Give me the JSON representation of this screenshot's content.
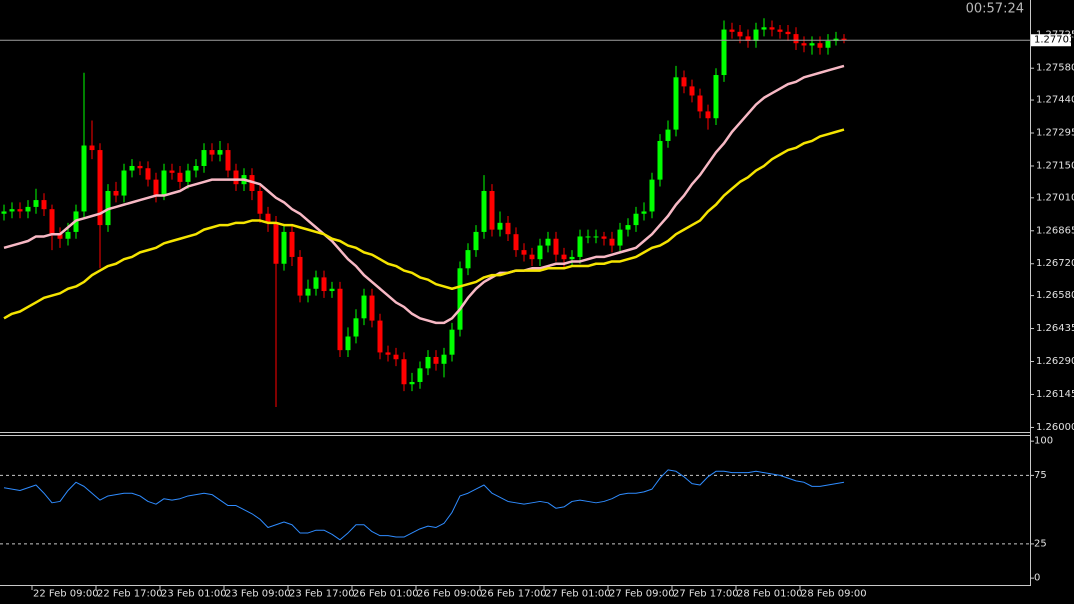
{
  "timer": "00:57:24",
  "chart_data": [
    {
      "type": "candlestick",
      "categories": [
        null,
        null,
        null,
        null,
        "22 Feb 09:00",
        null,
        null,
        null,
        null,
        null,
        null,
        null,
        "22 Feb 17:00",
        null,
        null,
        null,
        null,
        null,
        null,
        null,
        "23 Feb 01:00",
        null,
        null,
        null,
        null,
        null,
        null,
        null,
        "23 Feb 09:00",
        null,
        null,
        null,
        null,
        null,
        null,
        null,
        "23 Feb 17:00",
        null,
        null,
        null,
        null,
        null,
        null,
        null,
        "26 Feb 01:00",
        null,
        null,
        null,
        null,
        null,
        null,
        null,
        "26 Feb 09:00",
        null,
        null,
        null,
        null,
        null,
        null,
        null,
        "26 Feb 17:00",
        null,
        null,
        null,
        null,
        null,
        null,
        null,
        "27 Feb 01:00",
        null,
        null,
        null,
        null,
        null,
        null,
        null,
        "27 Feb 09:00",
        null,
        null,
        null,
        null,
        null,
        null,
        null,
        "27 Feb 17:00",
        null,
        null,
        null,
        null,
        null,
        null,
        null,
        "28 Feb 01:00",
        null,
        null,
        null,
        null,
        null,
        null,
        null,
        "28 Feb 09:00",
        null,
        null,
        null,
        null,
        null
      ],
      "open": [
        1.2694,
        1.2695,
        1.2696,
        1.2695,
        1.2697,
        1.27,
        1.2696,
        1.2685,
        1.2683,
        1.2686,
        1.2695,
        1.2724,
        1.2722,
        1.2689,
        1.2704,
        1.2702,
        1.2713,
        1.2715,
        1.2714,
        1.2709,
        1.2702,
        1.2713,
        1.2712,
        1.2708,
        1.2713,
        1.2715,
        1.2722,
        1.272,
        1.2722,
        1.2713,
        1.2707,
        1.2711,
        1.2704,
        1.2694,
        1.269,
        1.2672,
        1.2686,
        1.2675,
        1.2658,
        1.2661,
        1.2666,
        1.266,
        1.2661,
        1.2634,
        1.264,
        1.2648,
        1.2658,
        1.2647,
        1.2633,
        1.2632,
        1.263,
        1.2619,
        1.262,
        1.2626,
        1.2631,
        1.2628,
        1.2632,
        1.2643,
        1.267,
        1.2678,
        1.2686,
        1.2704,
        1.2687,
        1.269,
        1.2685,
        1.2678,
        1.2676,
        1.2674,
        1.268,
        1.2683,
        1.2676,
        1.2674,
        1.2675,
        1.2684,
        1.2684,
        1.2684,
        1.2683,
        1.268,
        1.2687,
        1.2689,
        1.2694,
        1.2695,
        1.2709,
        1.2726,
        1.2731,
        1.2754,
        1.275,
        1.2746,
        1.2739,
        1.2736,
        1.2755,
        1.2775,
        1.2774,
        1.2772,
        1.277,
        1.2775,
        1.2776,
        1.2775,
        1.2774,
        1.2773,
        1.2769,
        1.2768,
        1.2769,
        1.2767,
        1.277,
        1.2771
      ],
      "high": [
        1.2698,
        1.2699,
        1.2699,
        1.27,
        1.2705,
        1.2703,
        1.2698,
        1.2688,
        1.269,
        1.2698,
        1.2756,
        1.2735,
        1.2725,
        1.2707,
        1.2708,
        1.2716,
        1.2718,
        1.2717,
        1.2717,
        1.2712,
        1.2716,
        1.2716,
        1.2715,
        1.2716,
        1.2718,
        1.2725,
        1.2725,
        1.2726,
        1.2725,
        1.2716,
        1.2714,
        1.2714,
        1.2707,
        1.2697,
        1.2693,
        1.2689,
        1.2689,
        1.2678,
        1.2665,
        1.2669,
        1.2669,
        1.2664,
        1.2664,
        1.2644,
        1.2652,
        1.2661,
        1.2661,
        1.265,
        1.2636,
        1.2635,
        1.2633,
        1.2624,
        1.2629,
        1.2634,
        1.2634,
        1.2635,
        1.2646,
        1.2673,
        1.2681,
        1.2689,
        1.2711,
        1.2707,
        1.2695,
        1.2693,
        1.2688,
        1.2681,
        1.2679,
        1.2683,
        1.2686,
        1.2686,
        1.2679,
        1.2678,
        1.2687,
        1.2687,
        1.2687,
        1.2686,
        1.2686,
        1.269,
        1.2692,
        1.2697,
        1.2699,
        1.2712,
        1.2729,
        1.2735,
        1.2759,
        1.2757,
        1.2753,
        1.2749,
        1.2742,
        1.2758,
        1.2779,
        1.2778,
        1.2777,
        1.2775,
        1.2778,
        1.278,
        1.2779,
        1.2777,
        1.2777,
        1.2776,
        1.2772,
        1.2772,
        1.2772,
        1.2773,
        1.2774,
        1.2773
      ],
      "low": [
        1.2691,
        1.2692,
        1.2692,
        1.2692,
        1.2694,
        1.2693,
        1.2678,
        1.2679,
        1.268,
        1.2683,
        1.2692,
        1.2718,
        1.267,
        1.2686,
        1.2699,
        1.2699,
        1.271,
        1.2711,
        1.2706,
        1.2699,
        1.27,
        1.2709,
        1.2705,
        1.2705,
        1.271,
        1.2712,
        1.2717,
        1.2717,
        1.271,
        1.2704,
        1.2704,
        1.27,
        1.269,
        1.2686,
        1.2609,
        1.2669,
        1.2671,
        1.2655,
        1.2655,
        1.2658,
        1.2657,
        1.2657,
        1.2631,
        1.2631,
        1.2637,
        1.2645,
        1.2644,
        1.263,
        1.2629,
        1.2627,
        1.2616,
        1.2616,
        1.2617,
        1.2623,
        1.2625,
        1.2622,
        1.2629,
        1.264,
        1.2667,
        1.2675,
        1.2683,
        1.2684,
        1.2684,
        1.2682,
        1.2675,
        1.2673,
        1.2671,
        1.2671,
        1.2677,
        1.2673,
        1.267,
        1.2671,
        1.2672,
        1.2681,
        1.2681,
        1.268,
        1.2677,
        1.2677,
        1.2684,
        1.2686,
        1.2691,
        1.2692,
        1.2706,
        1.2723,
        1.2728,
        1.2747,
        1.2743,
        1.2736,
        1.2731,
        1.2733,
        1.2752,
        1.2771,
        1.2769,
        1.2767,
        1.2767,
        1.2772,
        1.2772,
        1.2771,
        1.277,
        1.2766,
        1.2765,
        1.2764,
        1.2764,
        1.2764,
        1.2768,
        1.2769
      ],
      "close": [
        1.2695,
        1.2696,
        1.2695,
        1.2697,
        1.27,
        1.2696,
        1.2685,
        1.2683,
        1.2686,
        1.2695,
        1.2724,
        1.2722,
        1.2689,
        1.2704,
        1.2702,
        1.2713,
        1.2715,
        1.2714,
        1.2709,
        1.2702,
        1.2713,
        1.2712,
        1.2708,
        1.2713,
        1.2715,
        1.2722,
        1.272,
        1.2722,
        1.2713,
        1.2707,
        1.2711,
        1.2704,
        1.2694,
        1.269,
        1.2672,
        1.2686,
        1.2675,
        1.2658,
        1.2661,
        1.2666,
        1.266,
        1.2661,
        1.2634,
        1.264,
        1.2648,
        1.2658,
        1.2647,
        1.2633,
        1.2632,
        1.263,
        1.2619,
        1.262,
        1.2626,
        1.2631,
        1.2628,
        1.2632,
        1.2643,
        1.267,
        1.2678,
        1.2686,
        1.2704,
        1.2687,
        1.269,
        1.2685,
        1.2678,
        1.2676,
        1.2674,
        1.268,
        1.2683,
        1.2676,
        1.2674,
        1.2675,
        1.2684,
        1.2684,
        1.2684,
        1.2683,
        1.268,
        1.2687,
        1.2689,
        1.2694,
        1.2695,
        1.2709,
        1.2726,
        1.2731,
        1.2754,
        1.275,
        1.2746,
        1.2739,
        1.2736,
        1.2755,
        1.2775,
        1.2774,
        1.2772,
        1.277,
        1.2775,
        1.2776,
        1.2775,
        1.2774,
        1.2773,
        1.2769,
        1.2768,
        1.2769,
        1.2767,
        1.277,
        1.2771,
        1.27703
      ],
      "up_color": "#00ff00",
      "down_color": "#ff0000",
      "series": [
        {
          "color": "#f7b8c4",
          "values": [
            1.2679,
            1.268,
            1.2681,
            1.2682,
            1.2684,
            1.2684,
            1.2685,
            1.2685,
            1.2688,
            1.2691,
            1.2692,
            1.2693,
            1.2694,
            1.2696,
            1.2697,
            1.2698,
            1.2699,
            1.27,
            1.2701,
            1.2702,
            1.2702,
            1.2703,
            1.2704,
            1.2706,
            1.2707,
            1.2708,
            1.2709,
            1.2709,
            1.2709,
            1.2709,
            1.2709,
            1.2708,
            1.2707,
            1.2704,
            1.2701,
            1.2699,
            1.2696,
            1.2694,
            1.2691,
            1.2688,
            1.2685,
            1.2682,
            1.2678,
            1.2674,
            1.2671,
            1.2667,
            1.2664,
            1.2661,
            1.2658,
            1.2655,
            1.2653,
            1.265,
            1.2648,
            1.2647,
            1.2646,
            1.2646,
            1.2648,
            1.2652,
            1.2657,
            1.2661,
            1.2664,
            1.2666,
            1.2668,
            1.2668,
            1.2669,
            1.2669,
            1.267,
            1.267,
            1.2671,
            1.2672,
            1.2672,
            1.2673,
            1.2673,
            1.2674,
            1.2675,
            1.2675,
            1.2676,
            1.2677,
            1.2678,
            1.2679,
            1.2682,
            1.2685,
            1.2689,
            1.2693,
            1.2698,
            1.2702,
            1.2707,
            1.2711,
            1.2716,
            1.2721,
            1.2725,
            1.273,
            1.2734,
            1.2738,
            1.2742,
            1.2745,
            1.2747,
            1.2749,
            1.2751,
            1.2752,
            1.2754,
            1.2755,
            1.2756,
            1.2757,
            1.2758,
            1.2759
          ]
        },
        {
          "color": "#f5e400",
          "values": [
            1.2648,
            1.265,
            1.2651,
            1.2653,
            1.2655,
            1.2657,
            1.2658,
            1.2659,
            1.2661,
            1.2662,
            1.2664,
            1.2667,
            1.2669,
            1.2671,
            1.2672,
            1.2674,
            1.2675,
            1.2677,
            1.2678,
            1.2679,
            1.2681,
            1.2682,
            1.2683,
            1.2684,
            1.2685,
            1.2687,
            1.2688,
            1.2689,
            1.2689,
            1.269,
            1.269,
            1.2691,
            1.2691,
            1.269,
            1.269,
            1.2689,
            1.2689,
            1.2688,
            1.2687,
            1.2686,
            1.2685,
            1.2683,
            1.2682,
            1.268,
            1.2679,
            1.2677,
            1.2676,
            1.2674,
            1.2672,
            1.2671,
            1.2669,
            1.2668,
            1.2666,
            1.2665,
            1.2663,
            1.2662,
            1.2661,
            1.2662,
            1.2663,
            1.2664,
            1.2666,
            1.2667,
            1.2667,
            1.2668,
            1.2669,
            1.2669,
            1.2669,
            1.2669,
            1.267,
            1.267,
            1.267,
            1.2671,
            1.2671,
            1.2671,
            1.2672,
            1.2672,
            1.2673,
            1.2673,
            1.2674,
            1.2675,
            1.2677,
            1.2679,
            1.268,
            1.2682,
            1.2685,
            1.2687,
            1.2689,
            1.2691,
            1.2695,
            1.2698,
            1.2702,
            1.2705,
            1.2708,
            1.271,
            1.2713,
            1.2715,
            1.2718,
            1.272,
            1.2722,
            1.2723,
            1.2725,
            1.2726,
            1.2728,
            1.2729,
            1.273,
            1.2731
          ]
        }
      ],
      "ylim": [
        1.2598,
        1.2788
      ],
      "yticks": [
        {
          "value": 1.27725,
          "label": "1.27725"
        },
        {
          "value": 1.2758,
          "label": "1.27580"
        },
        {
          "value": 1.2744,
          "label": "1.27440"
        },
        {
          "value": 1.27295,
          "label": "1.27295"
        },
        {
          "value": 1.2715,
          "label": "1.27150"
        },
        {
          "value": 1.2701,
          "label": "1.27010"
        },
        {
          "value": 1.26865,
          "label": "1.26865"
        },
        {
          "value": 1.2672,
          "label": "1.26720"
        },
        {
          "value": 1.2658,
          "label": "1.26580"
        },
        {
          "value": 1.26435,
          "label": "1.26435"
        },
        {
          "value": 1.2629,
          "label": "1.26290"
        },
        {
          "value": 1.26145,
          "label": "1.26145"
        },
        {
          "value": 1.26,
          "label": "1.26000"
        }
      ],
      "price_line": true
    },
    {
      "type": "line",
      "color": "#2f8cff",
      "values": [
        66,
        65,
        64,
        66,
        68,
        62,
        55,
        56,
        64,
        70,
        67,
        62,
        57,
        60,
        61,
        62,
        62,
        60,
        56,
        54,
        58,
        57,
        58,
        60,
        61,
        62,
        61,
        57,
        53,
        53,
        50,
        47,
        43,
        37,
        39,
        41,
        39,
        33,
        33,
        35,
        35,
        32,
        28,
        33,
        39,
        39,
        34,
        31,
        31,
        30,
        30,
        33,
        36,
        38,
        37,
        40,
        48,
        60,
        62,
        65,
        68,
        62,
        59,
        56,
        55,
        54,
        55,
        56,
        55,
        51,
        52,
        56,
        57,
        56,
        55,
        56,
        58,
        61,
        62,
        62,
        63,
        65,
        73,
        79,
        78,
        74,
        69,
        68,
        74,
        78,
        78,
        77,
        77,
        77,
        78,
        77,
        76,
        75,
        73,
        71,
        70,
        67,
        67,
        68,
        69,
        70
      ],
      "ylim": [
        -5,
        104.5
      ],
      "yticks": [
        100,
        75,
        25,
        0
      ],
      "levels": [
        75,
        25
      ]
    }
  ]
}
